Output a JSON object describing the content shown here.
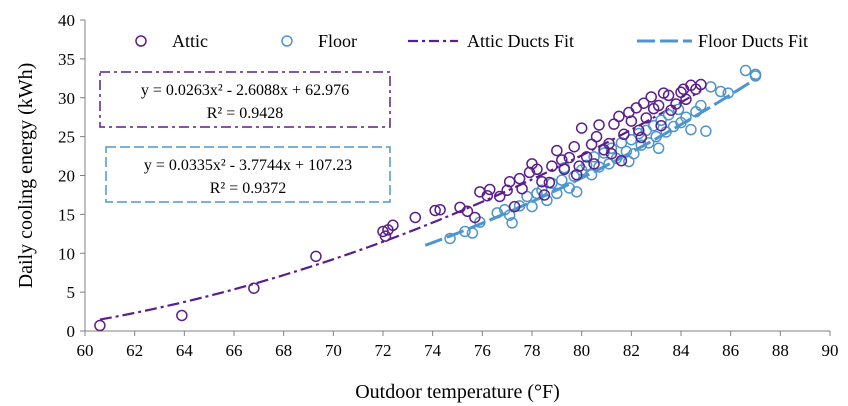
{
  "chart_data": {
    "type": "scatter",
    "xlabel": "Outdoor temperature (°F)",
    "ylabel": "Daily cooling energy (kWh)",
    "xlim": [
      60,
      90
    ],
    "ylim": [
      0,
      40
    ],
    "xticks": [
      "60",
      "62",
      "64",
      "66",
      "68",
      "70",
      "72",
      "74",
      "76",
      "78",
      "80",
      "82",
      "84",
      "86",
      "88",
      "90"
    ],
    "yticks": [
      "0",
      "5",
      "10",
      "15",
      "20",
      "25",
      "30",
      "35",
      "40"
    ],
    "grid": false,
    "legend": "top",
    "series": [
      {
        "name": "Attic",
        "color": "#5b1f8c",
        "marker": "circle-open",
        "points": [
          [
            60.6,
            0.7
          ],
          [
            63.9,
            2.0
          ],
          [
            66.8,
            5.5
          ],
          [
            69.3,
            9.6
          ],
          [
            72.0,
            12.8
          ],
          [
            72.1,
            12.2
          ],
          [
            72.2,
            13.0
          ],
          [
            72.4,
            13.6
          ],
          [
            73.3,
            14.6
          ],
          [
            74.1,
            15.5
          ],
          [
            74.3,
            15.6
          ],
          [
            75.1,
            15.9
          ],
          [
            75.4,
            15.4
          ],
          [
            75.7,
            14.6
          ],
          [
            75.9,
            17.9
          ],
          [
            76.2,
            17.4
          ],
          [
            76.3,
            18.2
          ],
          [
            76.7,
            17.3
          ],
          [
            77.0,
            18.1
          ],
          [
            77.1,
            19.2
          ],
          [
            77.5,
            19.6
          ],
          [
            77.6,
            18.3
          ],
          [
            77.9,
            20.4
          ],
          [
            78.0,
            21.5
          ],
          [
            78.2,
            20.8
          ],
          [
            78.4,
            19.2
          ],
          [
            78.5,
            17.5
          ],
          [
            78.8,
            21.2
          ],
          [
            79.0,
            23.2
          ],
          [
            79.2,
            22.0
          ],
          [
            79.3,
            20.8
          ],
          [
            79.5,
            22.3
          ],
          [
            79.7,
            23.7
          ],
          [
            79.9,
            21.2
          ],
          [
            80.0,
            26.1
          ],
          [
            80.2,
            22.4
          ],
          [
            80.4,
            24.0
          ],
          [
            80.6,
            25.0
          ],
          [
            80.7,
            26.5
          ],
          [
            80.9,
            23.3
          ],
          [
            81.1,
            24.1
          ],
          [
            81.3,
            26.6
          ],
          [
            81.5,
            27.6
          ],
          [
            81.7,
            25.3
          ],
          [
            81.9,
            28.1
          ],
          [
            82.0,
            27.0
          ],
          [
            82.2,
            28.7
          ],
          [
            82.3,
            25.8
          ],
          [
            82.5,
            29.3
          ],
          [
            82.6,
            27.4
          ],
          [
            82.8,
            30.1
          ],
          [
            82.9,
            28.6
          ],
          [
            83.1,
            29.0
          ],
          [
            83.3,
            30.6
          ],
          [
            83.5,
            30.3
          ],
          [
            83.6,
            28.4
          ],
          [
            83.8,
            29.2
          ],
          [
            84.0,
            30.7
          ],
          [
            84.1,
            31.1
          ],
          [
            84.2,
            29.8
          ],
          [
            84.4,
            31.6
          ],
          [
            84.6,
            31.1
          ],
          [
            84.8,
            31.7
          ],
          [
            80.5,
            21.5
          ],
          [
            81.2,
            22.8
          ],
          [
            82.4,
            24.9
          ],
          [
            83.2,
            26.4
          ],
          [
            81.6,
            21.9
          ],
          [
            77.3,
            16.0
          ],
          [
            78.7,
            19.1
          ],
          [
            79.8,
            20.1
          ]
        ]
      },
      {
        "name": "Floor",
        "color": "#4f95cd",
        "marker": "circle-open",
        "points": [
          [
            74.7,
            11.9
          ],
          [
            75.3,
            12.8
          ],
          [
            75.6,
            12.6
          ],
          [
            75.9,
            14.0
          ],
          [
            76.6,
            15.2
          ],
          [
            76.9,
            15.6
          ],
          [
            77.1,
            14.9
          ],
          [
            77.2,
            13.9
          ],
          [
            77.5,
            16.1
          ],
          [
            77.8,
            17.3
          ],
          [
            78.0,
            16.0
          ],
          [
            78.2,
            17.7
          ],
          [
            78.4,
            18.1
          ],
          [
            78.6,
            16.8
          ],
          [
            78.8,
            19.0
          ],
          [
            79.0,
            17.7
          ],
          [
            79.2,
            19.4
          ],
          [
            79.5,
            18.4
          ],
          [
            79.7,
            19.9
          ],
          [
            79.8,
            17.9
          ],
          [
            80.0,
            20.7
          ],
          [
            80.2,
            21.3
          ],
          [
            80.4,
            20.1
          ],
          [
            80.5,
            22.4
          ],
          [
            80.7,
            21.1
          ],
          [
            80.9,
            22.9
          ],
          [
            81.1,
            21.5
          ],
          [
            81.2,
            23.5
          ],
          [
            81.4,
            22.2
          ],
          [
            81.6,
            24.2
          ],
          [
            81.8,
            23.1
          ],
          [
            82.0,
            24.6
          ],
          [
            82.1,
            22.8
          ],
          [
            82.3,
            25.4
          ],
          [
            82.4,
            23.9
          ],
          [
            82.6,
            25.8
          ],
          [
            82.7,
            24.2
          ],
          [
            82.9,
            26.4
          ],
          [
            83.0,
            25.0
          ],
          [
            83.2,
            27.1
          ],
          [
            83.4,
            25.6
          ],
          [
            83.5,
            27.8
          ],
          [
            83.7,
            26.3
          ],
          [
            83.9,
            28.5
          ],
          [
            84.0,
            26.8
          ],
          [
            84.2,
            27.5
          ],
          [
            84.4,
            25.9
          ],
          [
            84.6,
            28.2
          ],
          [
            84.8,
            29.0
          ],
          [
            85.0,
            25.7
          ],
          [
            85.2,
            31.4
          ],
          [
            85.6,
            30.8
          ],
          [
            85.9,
            30.6
          ],
          [
            86.6,
            33.5
          ],
          [
            87.0,
            33.0
          ],
          [
            87.0,
            32.8
          ],
          [
            81.9,
            21.8
          ],
          [
            83.1,
            23.5
          ],
          [
            79.3,
            21.0
          ]
        ]
      },
      {
        "name": "Attic Ducts Fit",
        "color": "#5b1f8c",
        "style": "dash-dot",
        "equation_text": "y = 0.0263x² - 2.6088x + 62.976",
        "r2_text": "R² = 0.9428",
        "coefficients": [
          0.0263,
          -2.6088,
          62.976
        ],
        "x_range": [
          60.6,
          84.8
        ]
      },
      {
        "name": "Floor Ducts Fit",
        "color": "#4f95cd",
        "style": "long-dash",
        "equation_text": "y = 0.0335x² - 3.7744x + 107.23",
        "r2_text": "R² = 0.9372",
        "coefficients": [
          0.0335,
          -3.7744,
          107.23
        ],
        "x_range": [
          73.7,
          87.0
        ]
      }
    ]
  }
}
